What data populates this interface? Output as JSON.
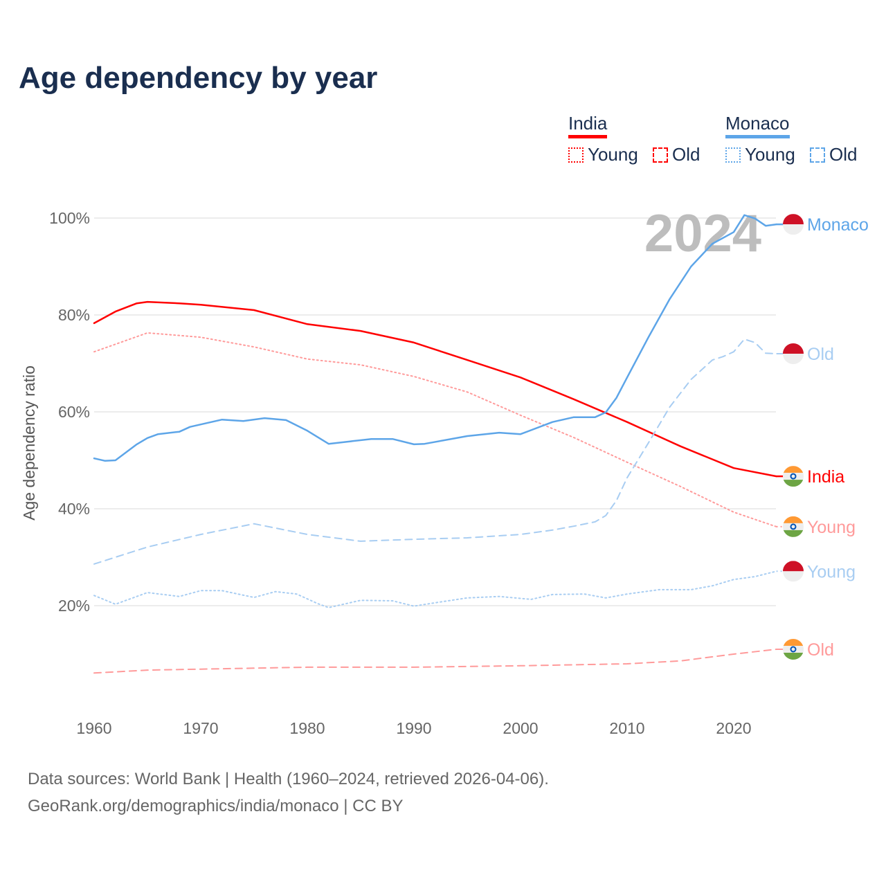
{
  "chart_data": {
    "type": "line",
    "title": "Age dependency by year",
    "ylabel": "Age dependency ratio",
    "xlabel": "",
    "xlim": [
      1960,
      2024
    ],
    "ylim": [
      0,
      100
    ],
    "x_ticks": [
      "1960",
      "1970",
      "1980",
      "1990",
      "2000",
      "2010",
      "2020"
    ],
    "y_ticks": [
      {
        "v": 20,
        "label": "20%"
      },
      {
        "v": 40,
        "label": "40%"
      },
      {
        "v": 60,
        "label": "60%"
      },
      {
        "v": 80,
        "label": "80%"
      },
      {
        "v": 100,
        "label": "100%"
      }
    ],
    "grid": true,
    "year_watermark": "2024",
    "legend": {
      "placement": "top-right",
      "groups": [
        {
          "country": "India",
          "color": "#ff0000",
          "items": [
            {
              "label": "Young",
              "style": "dotted"
            },
            {
              "label": "Old",
              "style": "dashed"
            }
          ]
        },
        {
          "country": "Monaco",
          "color": "#5da5e8",
          "items": [
            {
              "label": "Young",
              "style": "dotted"
            },
            {
              "label": "Old",
              "style": "dashed"
            }
          ]
        }
      ]
    },
    "series": [
      {
        "name": "India",
        "label": "India",
        "flag": "india",
        "color": "#ff0000",
        "style": "solid",
        "width": 2.5,
        "points": [
          [
            1960,
            78.3
          ],
          [
            1962,
            80.7
          ],
          [
            1964,
            82.4
          ],
          [
            1965,
            82.7
          ],
          [
            1968,
            82.4
          ],
          [
            1970,
            82.1
          ],
          [
            1975,
            81
          ],
          [
            1980,
            78.1
          ],
          [
            1985,
            76.7
          ],
          [
            1990,
            74.3
          ],
          [
            1995,
            70.7
          ],
          [
            2000,
            67.1
          ],
          [
            2005,
            62.6
          ],
          [
            2010,
            57.9
          ],
          [
            2015,
            52.9
          ],
          [
            2020,
            48.4
          ],
          [
            2024,
            46.7
          ]
        ]
      },
      {
        "name": "India Young",
        "label": "Young",
        "flag": "india",
        "color": "#ff9a9a",
        "style": "dotted",
        "width": 2,
        "points": [
          [
            1960,
            72.4
          ],
          [
            1965,
            76.3
          ],
          [
            1970,
            75.4
          ],
          [
            1975,
            73.4
          ],
          [
            1980,
            70.9
          ],
          [
            1985,
            69.7
          ],
          [
            1990,
            67.3
          ],
          [
            1995,
            64.1
          ],
          [
            2000,
            59.3
          ],
          [
            2005,
            54.7
          ],
          [
            2010,
            49.6
          ],
          [
            2015,
            44.6
          ],
          [
            2020,
            39.3
          ],
          [
            2024,
            36.3
          ]
        ]
      },
      {
        "name": "India Old",
        "label": "Old",
        "flag": "india",
        "color": "#ff9a9a",
        "style": "dashed",
        "width": 2,
        "points": [
          [
            1960,
            6.1
          ],
          [
            1965,
            6.7
          ],
          [
            1970,
            6.9
          ],
          [
            1980,
            7.3
          ],
          [
            1990,
            7.3
          ],
          [
            2000,
            7.6
          ],
          [
            2010,
            8
          ],
          [
            2015,
            8.6
          ],
          [
            2020,
            10
          ],
          [
            2024,
            11
          ]
        ]
      },
      {
        "name": "Monaco",
        "label": "Monaco",
        "flag": "monaco",
        "color": "#5da5e8",
        "style": "solid",
        "width": 2.5,
        "points": [
          [
            1960,
            50.4
          ],
          [
            1961,
            49.9
          ],
          [
            1962,
            50
          ],
          [
            1964,
            53.3
          ],
          [
            1965,
            54.6
          ],
          [
            1966,
            55.4
          ],
          [
            1968,
            55.9
          ],
          [
            1969,
            56.9
          ],
          [
            1970,
            57.4
          ],
          [
            1972,
            58.4
          ],
          [
            1974,
            58.1
          ],
          [
            1976,
            58.7
          ],
          [
            1978,
            58.3
          ],
          [
            1980,
            56.1
          ],
          [
            1982,
            53.4
          ],
          [
            1984,
            53.9
          ],
          [
            1986,
            54.4
          ],
          [
            1988,
            54.4
          ],
          [
            1990,
            53.3
          ],
          [
            1991,
            53.4
          ],
          [
            1995,
            55
          ],
          [
            1998,
            55.7
          ],
          [
            2000,
            55.4
          ],
          [
            2003,
            57.9
          ],
          [
            2005,
            58.9
          ],
          [
            2007,
            58.9
          ],
          [
            2008,
            59.9
          ],
          [
            2009,
            62.9
          ],
          [
            2010,
            67.1
          ],
          [
            2012,
            75.4
          ],
          [
            2014,
            83.3
          ],
          [
            2016,
            90
          ],
          [
            2018,
            94.7
          ],
          [
            2020,
            97.1
          ],
          [
            2021,
            100.6
          ],
          [
            2022,
            99.9
          ],
          [
            2023,
            98.4
          ],
          [
            2024,
            98.7
          ]
        ]
      },
      {
        "name": "Monaco Old",
        "label": "Old",
        "flag": "monaco",
        "color": "#a8cdf2",
        "style": "dashed",
        "width": 2,
        "points": [
          [
            1960,
            28.6
          ],
          [
            1965,
            32.1
          ],
          [
            1970,
            34.7
          ],
          [
            1975,
            36.9
          ],
          [
            1980,
            34.7
          ],
          [
            1985,
            33.3
          ],
          [
            1990,
            33.7
          ],
          [
            1995,
            34
          ],
          [
            2000,
            34.7
          ],
          [
            2003,
            35.6
          ],
          [
            2005,
            36.4
          ],
          [
            2007,
            37.3
          ],
          [
            2008,
            38.6
          ],
          [
            2009,
            41.7
          ],
          [
            2010,
            46.4
          ],
          [
            2012,
            53.6
          ],
          [
            2014,
            61
          ],
          [
            2016,
            66.7
          ],
          [
            2018,
            70.7
          ],
          [
            2019,
            71.4
          ],
          [
            2020,
            72.4
          ],
          [
            2021,
            75
          ],
          [
            2022,
            74.3
          ],
          [
            2023,
            72.1
          ],
          [
            2024,
            72
          ]
        ]
      },
      {
        "name": "Monaco Young",
        "label": "Young",
        "flag": "monaco",
        "color": "#a8cdf2",
        "style": "dotted",
        "width": 2,
        "points": [
          [
            1960,
            22.1
          ],
          [
            1962,
            20.3
          ],
          [
            1965,
            22.7
          ],
          [
            1968,
            21.9
          ],
          [
            1970,
            23.1
          ],
          [
            1972,
            23.1
          ],
          [
            1975,
            21.7
          ],
          [
            1977,
            22.9
          ],
          [
            1979,
            22.4
          ],
          [
            1981,
            20.4
          ],
          [
            1982,
            19.6
          ],
          [
            1985,
            21.1
          ],
          [
            1988,
            21
          ],
          [
            1990,
            19.9
          ],
          [
            1992,
            20.6
          ],
          [
            1995,
            21.6
          ],
          [
            1998,
            21.9
          ],
          [
            2001,
            21.3
          ],
          [
            2003,
            22.3
          ],
          [
            2006,
            22.4
          ],
          [
            2008,
            21.6
          ],
          [
            2010,
            22.4
          ],
          [
            2013,
            23.3
          ],
          [
            2016,
            23.3
          ],
          [
            2018,
            24.1
          ],
          [
            2020,
            25.4
          ],
          [
            2022,
            26
          ],
          [
            2024,
            27.1
          ]
        ]
      }
    ]
  },
  "footer": {
    "line1": "Data sources: World Bank | Health (1960–2024, retrieved 2026-04-06).",
    "line2": "GeoRank.org/demographics/india/monaco | CC BY"
  }
}
